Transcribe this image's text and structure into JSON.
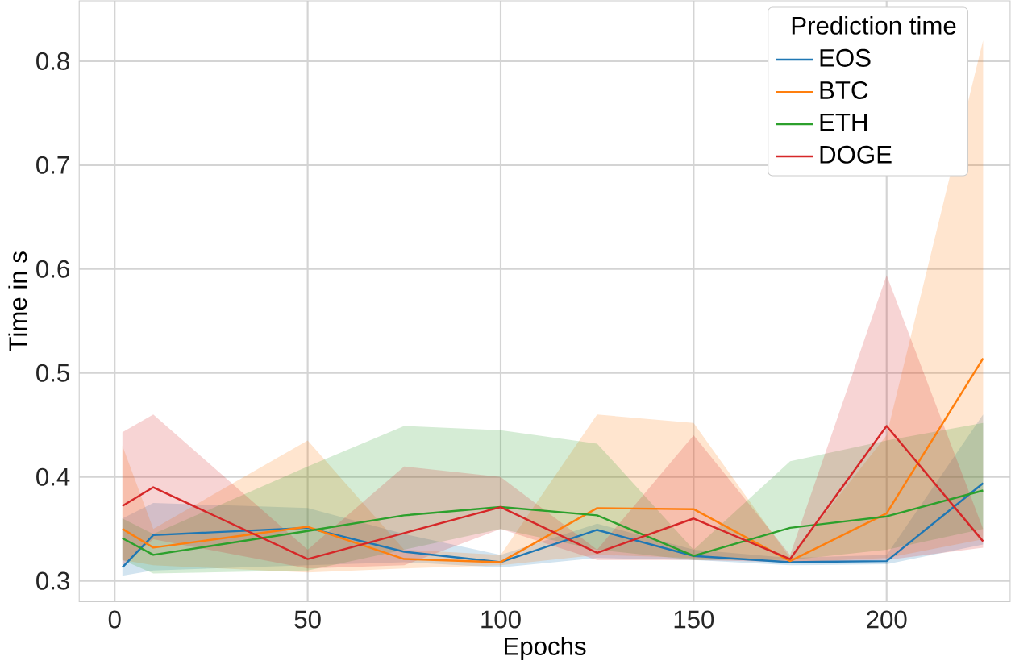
{
  "chart_data": {
    "type": "line",
    "xlabel": "Epochs",
    "ylabel": "Time in s",
    "legend_title": "Prediction time",
    "legend": "top right",
    "grid": true,
    "x": [
      2,
      10,
      50,
      75,
      100,
      125,
      150,
      175,
      200,
      225
    ],
    "xlim": [
      -9.2,
      232
    ],
    "ylim": [
      0.28,
      0.858
    ],
    "xticks": [
      0,
      50,
      100,
      150,
      200
    ],
    "yticks": [
      0.3,
      0.4,
      0.5,
      0.6,
      0.7,
      0.8
    ],
    "series": [
      {
        "name": "EOS",
        "color": "#1f77b4",
        "values": [
          0.313,
          0.344,
          0.351,
          0.328,
          0.318,
          0.349,
          0.324,
          0.318,
          0.319,
          0.394
        ],
        "lower": [
          0.305,
          0.31,
          0.315,
          0.318,
          0.313,
          0.322,
          0.32,
          0.315,
          0.316,
          0.335
        ],
        "upper": [
          0.36,
          0.375,
          0.37,
          0.345,
          0.325,
          0.355,
          0.33,
          0.322,
          0.325,
          0.46
        ]
      },
      {
        "name": "BTC",
        "color": "#ff7f0e",
        "values": [
          0.35,
          0.332,
          0.352,
          0.321,
          0.318,
          0.37,
          0.369,
          0.319,
          0.365,
          0.514
        ],
        "lower": [
          0.32,
          0.315,
          0.308,
          0.312,
          0.315,
          0.325,
          0.322,
          0.318,
          0.322,
          0.34
        ],
        "upper": [
          0.43,
          0.35,
          0.435,
          0.33,
          0.325,
          0.46,
          0.452,
          0.322,
          0.44,
          0.82
        ]
      },
      {
        "name": "ETH",
        "color": "#2ca02c",
        "values": [
          0.341,
          0.325,
          0.348,
          0.363,
          0.371,
          0.363,
          0.324,
          0.351,
          0.362,
          0.387
        ],
        "lower": [
          0.32,
          0.307,
          0.31,
          0.33,
          0.35,
          0.33,
          0.32,
          0.32,
          0.33,
          0.35
        ],
        "upper": [
          0.36,
          0.345,
          0.41,
          0.449,
          0.445,
          0.432,
          0.33,
          0.415,
          0.435,
          0.452
        ]
      },
      {
        "name": "DOGE",
        "color": "#d62728",
        "values": [
          0.372,
          0.39,
          0.321,
          0.346,
          0.371,
          0.327,
          0.36,
          0.321,
          0.449,
          0.338
        ],
        "lower": [
          0.315,
          0.34,
          0.312,
          0.315,
          0.35,
          0.32,
          0.32,
          0.318,
          0.32,
          0.332
        ],
        "upper": [
          0.443,
          0.46,
          0.33,
          0.41,
          0.4,
          0.33,
          0.44,
          0.325,
          0.594,
          0.35
        ]
      }
    ]
  }
}
